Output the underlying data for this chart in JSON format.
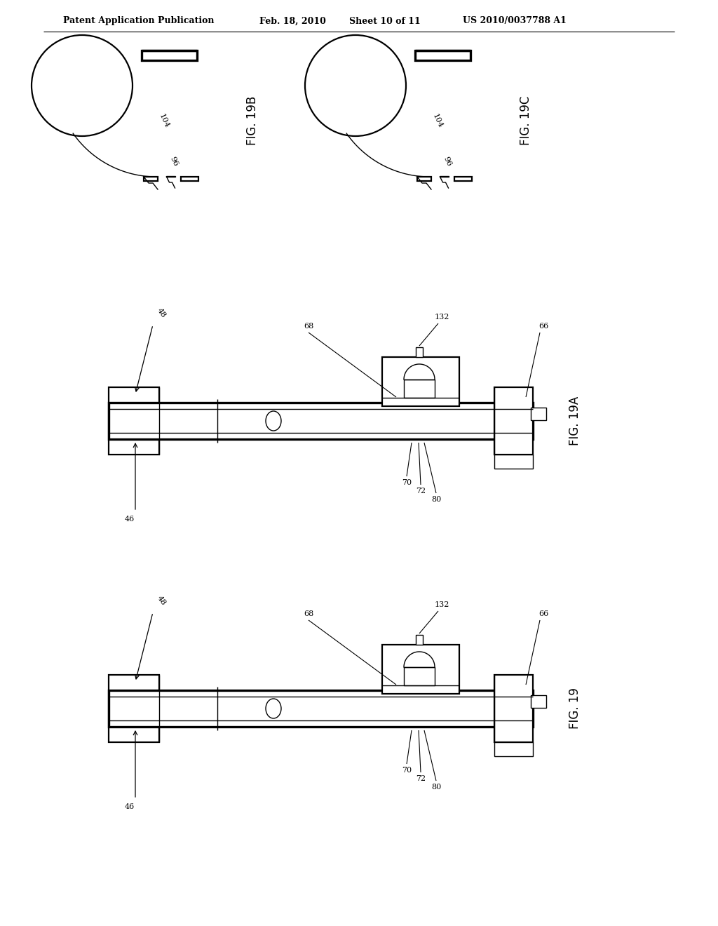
{
  "bg_color": "#ffffff",
  "line_color": "#000000",
  "header_text": "Patent Application Publication",
  "header_date": "Feb. 18, 2010",
  "header_sheet": "Sheet 10 of 11",
  "header_patent": "US 2010/0037788 A1",
  "fig19B_label": "FIG. 19B",
  "fig19C_label": "FIG. 19C",
  "fig19A_label": "FIG. 19A",
  "fig19_label": "FIG. 19"
}
